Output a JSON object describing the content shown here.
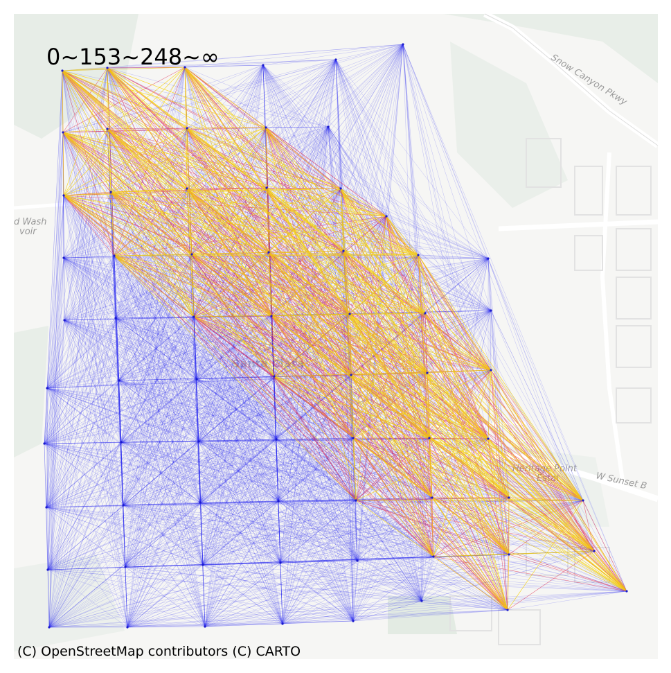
{
  "map": {
    "legend": "0~153~248~∞",
    "attribution": "(C) OpenStreetMap contributors (C) CARTO",
    "labels": {
      "road_north": "Snow Canyon Pkwy",
      "road_sunset": "W Sunset B",
      "wash": "d Wash",
      "wash2": "voir",
      "center": "Santa Clara",
      "park": "Heritage Point",
      "park2": "Estat"
    },
    "colors": {
      "background": "#f6f6f4",
      "green_area": "#dfe8df",
      "road": "#ffffff",
      "edge_low": "#2b2bf0",
      "edge_mid": "#e0234a",
      "edge_high": "#f5d000"
    },
    "flow_thresholds": [
      0,
      153,
      248
    ]
  }
}
